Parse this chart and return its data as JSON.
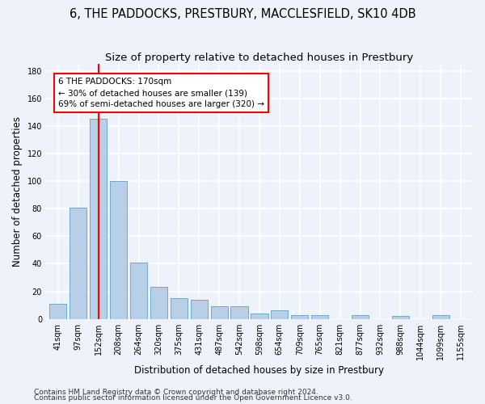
{
  "title": "6, THE PADDOCKS, PRESTBURY, MACCLESFIELD, SK10 4DB",
  "subtitle": "Size of property relative to detached houses in Prestbury",
  "xlabel": "Distribution of detached houses by size in Prestbury",
  "ylabel": "Number of detached properties",
  "categories": [
    "41sqm",
    "97sqm",
    "152sqm",
    "208sqm",
    "264sqm",
    "320sqm",
    "375sqm",
    "431sqm",
    "487sqm",
    "542sqm",
    "598sqm",
    "654sqm",
    "709sqm",
    "765sqm",
    "821sqm",
    "877sqm",
    "932sqm",
    "988sqm",
    "1044sqm",
    "1099sqm",
    "1155sqm"
  ],
  "values": [
    11,
    81,
    145,
    100,
    41,
    23,
    15,
    14,
    9,
    9,
    4,
    6,
    3,
    3,
    0,
    3,
    0,
    2,
    0,
    3,
    0
  ],
  "bar_color": "#b8cfe8",
  "bar_edge_color": "#6fa8d4",
  "red_line_x": 2,
  "annotation_title": "6 THE PADDOCKS: 170sqm",
  "annotation_line1": "← 30% of detached houses are smaller (139)",
  "annotation_line2": "69% of semi-detached houses are larger (320) →",
  "ylim": [
    0,
    185
  ],
  "yticks": [
    0,
    20,
    40,
    60,
    80,
    100,
    120,
    140,
    160,
    180
  ],
  "footer1": "Contains HM Land Registry data © Crown copyright and database right 2024.",
  "footer2": "Contains public sector information licensed under the Open Government Licence v3.0.",
  "background_color": "#eef2fa",
  "grid_color": "#ffffff",
  "title_fontsize": 10.5,
  "subtitle_fontsize": 9.5,
  "axis_label_fontsize": 8.5,
  "tick_fontsize": 7,
  "footer_fontsize": 6.5,
  "annotation_fontsize": 7.5
}
